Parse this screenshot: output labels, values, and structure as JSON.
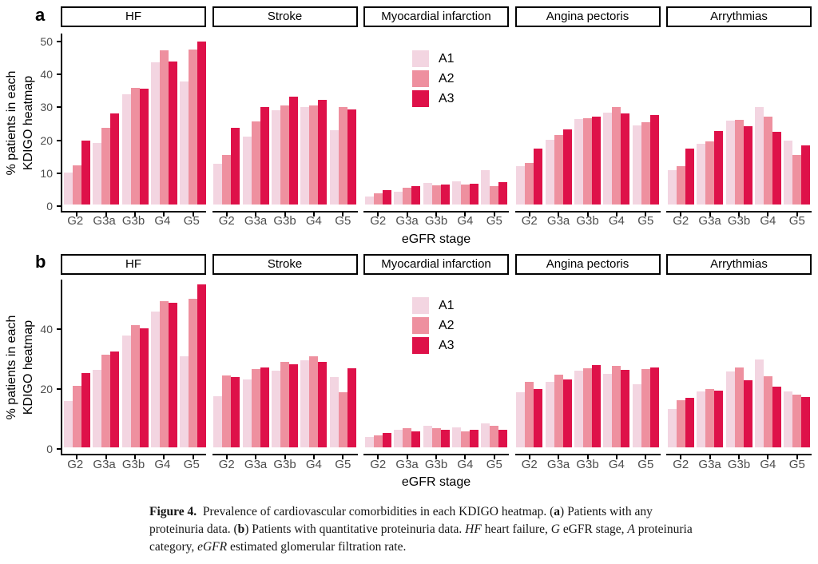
{
  "figure": {
    "row_a_label": "a",
    "row_b_label": "b",
    "ylabel_line1": "% patients in each",
    "ylabel_line2": "KDIGO heatmap",
    "xlabel": "eGFR stage",
    "legend": {
      "entries": [
        {
          "label": "A1",
          "color": "#f3d5e1"
        },
        {
          "label": "A2",
          "color": "#ee909f"
        },
        {
          "label": "A3",
          "color": "#de1149"
        }
      ]
    },
    "colors": {
      "axis": "#000000",
      "tick_text": "#4d4d4d",
      "strip_background": "#ffffff",
      "strip_border": "#000000"
    }
  },
  "chart_data": [
    {
      "type": "bar",
      "row": "a",
      "facets": [
        "HF",
        "Stroke",
        "Myocardial infarction",
        "Angina pectoris",
        "Arrythmias"
      ],
      "categories": [
        "G2",
        "G3a",
        "G3b",
        "G4",
        "G5"
      ],
      "ylim": [
        0,
        52
      ],
      "yticks": [
        0,
        10,
        20,
        30,
        40,
        50
      ],
      "xlabel": "eGFR stage",
      "ylabel": "% patients in each KDIGO heatmap",
      "legend_position": "inside-middle-panel",
      "grid": false,
      "series": [
        {
          "facet": "HF",
          "name": "A1",
          "values": [
            9.6,
            18.8,
            33.5,
            43.2,
            37.5
          ]
        },
        {
          "facet": "HF",
          "name": "A2",
          "values": [
            12.0,
            23.2,
            35.4,
            46.8,
            47.0
          ]
        },
        {
          "facet": "HF",
          "name": "A3",
          "values": [
            19.5,
            27.6,
            35.2,
            43.5,
            49.6
          ]
        },
        {
          "facet": "Stroke",
          "name": "A1",
          "values": [
            12.3,
            20.6,
            28.7,
            29.6,
            22.5
          ]
        },
        {
          "facet": "Stroke",
          "name": "A2",
          "values": [
            15.1,
            25.2,
            30.1,
            30.0,
            29.6
          ]
        },
        {
          "facet": "Stroke",
          "name": "A3",
          "values": [
            23.3,
            29.5,
            32.7,
            31.8,
            28.8
          ]
        },
        {
          "facet": "Myocardial infarction",
          "name": "A1",
          "values": [
            2.5,
            4.0,
            6.6,
            7.0,
            10.5
          ]
        },
        {
          "facet": "Myocardial infarction",
          "name": "A2",
          "values": [
            3.3,
            5.2,
            5.8,
            6.0,
            5.7
          ]
        },
        {
          "facet": "Myocardial infarction",
          "name": "A3",
          "values": [
            4.3,
            5.6,
            6.1,
            6.2,
            6.9
          ]
        },
        {
          "facet": "Angina pectoris",
          "name": "A1",
          "values": [
            11.6,
            19.6,
            25.9,
            27.9,
            24.1
          ]
        },
        {
          "facet": "Angina pectoris",
          "name": "A2",
          "values": [
            12.6,
            21.1,
            26.1,
            29.5,
            25.0
          ]
        },
        {
          "facet": "Angina pectoris",
          "name": "A3",
          "values": [
            16.9,
            22.9,
            26.8,
            27.6,
            27.3
          ]
        },
        {
          "facet": "Arrythmias",
          "name": "A1",
          "values": [
            10.4,
            18.4,
            25.6,
            29.5,
            19.3
          ]
        },
        {
          "facet": "Arrythmias",
          "name": "A2",
          "values": [
            11.7,
            19.1,
            25.7,
            26.8,
            15.0
          ]
        },
        {
          "facet": "Arrythmias",
          "name": "A3",
          "values": [
            16.9,
            22.4,
            23.9,
            22.0,
            18.0
          ]
        }
      ]
    },
    {
      "type": "bar",
      "row": "b",
      "facets": [
        "HF",
        "Stroke",
        "Myocardial infarction",
        "Angina pectoris",
        "Arrythmias"
      ],
      "categories": [
        "G2",
        "G3a",
        "G3b",
        "G4",
        "G5"
      ],
      "ylim": [
        0,
        56
      ],
      "yticks": [
        0,
        20,
        40
      ],
      "xlabel": "eGFR stage",
      "ylabel": "% patients in each KDIGO heatmap",
      "legend_position": "inside-middle-panel",
      "grid": false,
      "series": [
        {
          "facet": "HF",
          "name": "A1",
          "values": [
            15.6,
            25.8,
            37.3,
            45.3,
            30.5
          ]
        },
        {
          "facet": "HF",
          "name": "A2",
          "values": [
            20.6,
            30.9,
            40.8,
            48.8,
            49.6
          ]
        },
        {
          "facet": "HF",
          "name": "A3",
          "values": [
            24.7,
            32.1,
            39.7,
            48.2,
            54.3
          ]
        },
        {
          "facet": "Stroke",
          "name": "A1",
          "values": [
            17.2,
            22.8,
            25.7,
            29.0,
            23.5
          ]
        },
        {
          "facet": "Stroke",
          "name": "A2",
          "values": [
            23.9,
            26.1,
            28.6,
            30.3,
            18.5
          ]
        },
        {
          "facet": "Stroke",
          "name": "A3",
          "values": [
            23.6,
            26.7,
            27.8,
            28.5,
            26.4
          ]
        },
        {
          "facet": "Myocardial infarction",
          "name": "A1",
          "values": [
            3.5,
            6.0,
            7.3,
            6.8,
            8.0
          ]
        },
        {
          "facet": "Myocardial infarction",
          "name": "A2",
          "values": [
            4.0,
            6.5,
            6.3,
            5.3,
            7.3
          ]
        },
        {
          "facet": "Myocardial infarction",
          "name": "A3",
          "values": [
            4.8,
            5.3,
            5.8,
            5.8,
            5.8
          ]
        },
        {
          "facet": "Angina pectoris",
          "name": "A1",
          "values": [
            18.5,
            22.0,
            25.5,
            24.5,
            21.0
          ]
        },
        {
          "facet": "Angina pectoris",
          "name": "A2",
          "values": [
            21.8,
            24.4,
            26.5,
            27.2,
            26.2
          ]
        },
        {
          "facet": "Angina pectoris",
          "name": "A3",
          "values": [
            19.5,
            22.6,
            27.6,
            25.9,
            26.8
          ]
        },
        {
          "facet": "Arrythmias",
          "name": "A1",
          "values": [
            12.7,
            18.8,
            25.4,
            29.4,
            18.6
          ]
        },
        {
          "facet": "Arrythmias",
          "name": "A2",
          "values": [
            15.8,
            19.5,
            26.6,
            23.7,
            17.5
          ]
        },
        {
          "facet": "Arrythmias",
          "name": "A3",
          "values": [
            16.6,
            18.9,
            22.5,
            20.3,
            16.7
          ]
        }
      ]
    }
  ],
  "caption": {
    "runs": [
      {
        "text": "Figure 4.",
        "bold": true
      },
      {
        "text": " Prevalence of cardiovascular comorbidities in each KDIGO heatmap. ("
      },
      {
        "text": "a",
        "bold": true
      },
      {
        "text": ") Patients with any"
      },
      {
        "br": true
      },
      {
        "text": "proteinuria data. ("
      },
      {
        "text": "b",
        "bold": true
      },
      {
        "text": ") Patients with quantitative proteinuria data. "
      },
      {
        "text": "HF",
        "italic": true
      },
      {
        "text": " heart failure, "
      },
      {
        "text": "G",
        "italic": true
      },
      {
        "text": " eGFR stage, "
      },
      {
        "text": "A",
        "italic": true
      },
      {
        "text": " proteinuria"
      },
      {
        "br": true
      },
      {
        "text": "category, "
      },
      {
        "text": "eGFR",
        "italic": true
      },
      {
        "text": " estimated glomerular filtration rate."
      }
    ]
  }
}
